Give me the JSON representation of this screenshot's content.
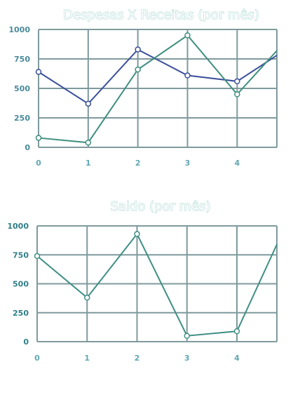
{
  "chart_data": [
    {
      "type": "line",
      "title": "Despesas X Receitas (por mês)",
      "xlabel": "",
      "ylabel": "",
      "x": [
        0,
        1,
        2,
        3,
        4,
        4.8
      ],
      "xticks": [
        "0",
        "1",
        "2",
        "3",
        "4"
      ],
      "yticks": [
        "0",
        "250",
        "500",
        "750",
        "1000"
      ],
      "xlim": [
        0,
        4.8
      ],
      "ylim": [
        0,
        1000
      ],
      "grid": true,
      "legend": "none",
      "series": [
        {
          "values": [
            640,
            370,
            830,
            610,
            560,
            780
          ],
          "color": "#3b4f9a"
        },
        {
          "values": [
            80,
            40,
            660,
            950,
            450,
            820
          ],
          "color": "#3f8f7f"
        }
      ]
    },
    {
      "type": "line",
      "title": "Saldo (por mês)",
      "xlabel": "",
      "ylabel": "",
      "x": [
        0,
        1,
        2,
        3,
        4,
        4.8
      ],
      "xticks": [
        "0",
        "1",
        "2",
        "3",
        "4"
      ],
      "yticks": [
        "0",
        "250",
        "500",
        "750",
        "1000"
      ],
      "xlim": [
        0,
        4.8
      ],
      "ylim": [
        0,
        1000
      ],
      "grid": true,
      "legend": "none",
      "series": [
        {
          "values": [
            740,
            380,
            930,
            50,
            90,
            840
          ],
          "color": "#3f8f85"
        }
      ]
    }
  ]
}
